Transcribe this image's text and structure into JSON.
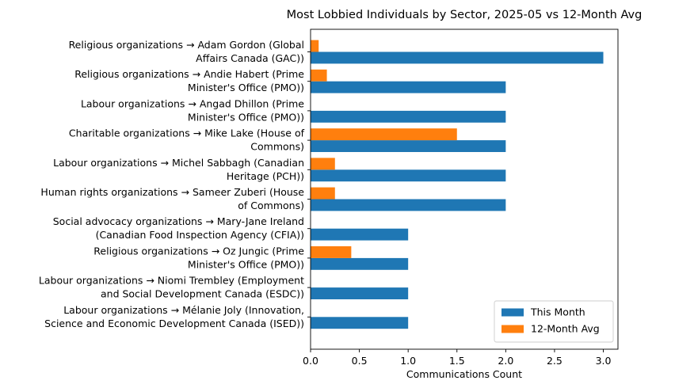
{
  "chart_data": {
    "type": "bar",
    "orientation": "horizontal",
    "title": "Most Lobbied Individuals by Sector, 2025-05 vs 12-Month Avg",
    "xlabel": "Communications Count",
    "ylabel": "",
    "xlim": [
      0,
      3.15
    ],
    "xticks": [
      "0.0",
      "0.5",
      "1.0",
      "1.5",
      "2.0",
      "2.5",
      "3.0"
    ],
    "grid": false,
    "legend_position": "bottom-right",
    "categories": [
      [
        "Religious organizations → Adam Gordon (Global",
        "Affairs Canada (GAC))"
      ],
      [
        "Religious organizations → Andie Habert (Prime",
        "Minister's Office (PMO))"
      ],
      [
        "Labour organizations → Angad Dhillon (Prime",
        "Minister's Office (PMO))"
      ],
      [
        "Charitable organizations → Mike Lake (House of",
        "Commons)"
      ],
      [
        "Labour organizations → Michel Sabbagh (Canadian",
        "Heritage (PCH))"
      ],
      [
        "Human rights organizations → Sameer Zuberi (House",
        "of Commons)"
      ],
      [
        "Social advocacy organizations → Mary-Jane Ireland",
        "(Canadian Food Inspection Agency (CFIA))"
      ],
      [
        "Religious organizations → Oz Jungic (Prime",
        "Minister's Office (PMO))"
      ],
      [
        "Labour organizations → Niomi Trembley (Employment",
        "and Social Development Canada (ESDC))"
      ],
      [
        "Labour organizations → Mélanie Joly (Innovation,",
        "Science and Economic Development Canada (ISED))"
      ]
    ],
    "series": [
      {
        "name": "This Month",
        "color": "#1f77b4",
        "values": [
          3,
          2,
          2,
          2,
          2,
          2,
          1,
          1,
          1,
          1
        ]
      },
      {
        "name": "12-Month Avg",
        "color": "#ff7f0e",
        "values": [
          0.083,
          0.167,
          0,
          1.5,
          0.25,
          0.25,
          0,
          0.417,
          0,
          0
        ]
      }
    ]
  }
}
